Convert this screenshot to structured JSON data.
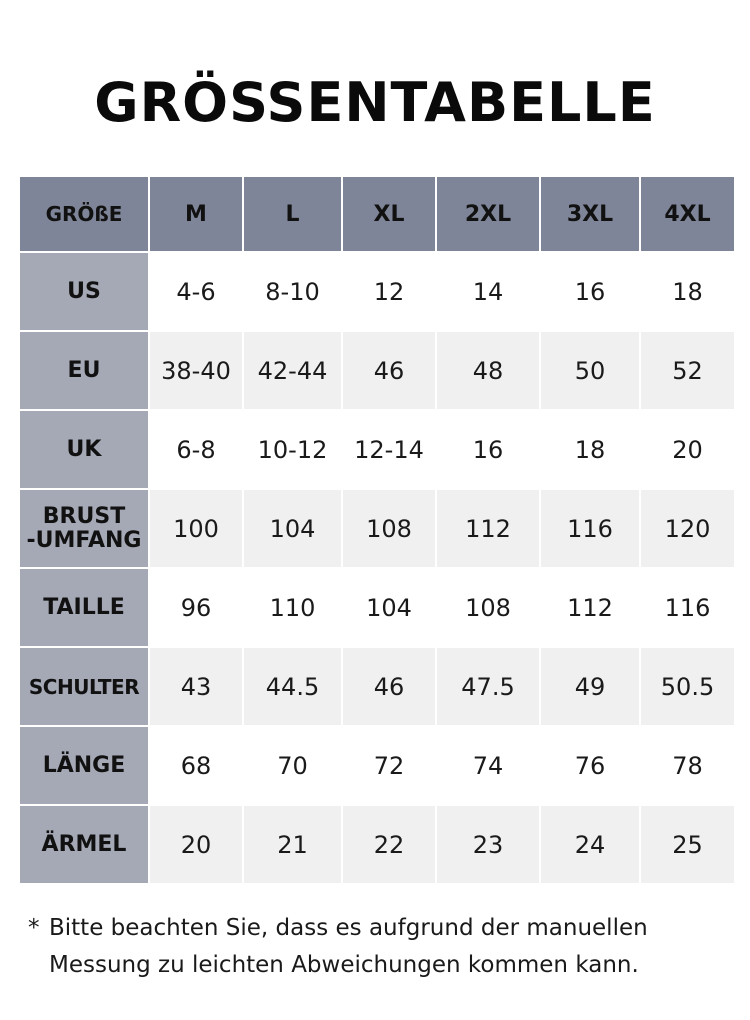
{
  "title": "GRÖSSENTABELLE",
  "table": {
    "header": [
      "GRÖßE",
      "M",
      "L",
      "XL",
      "2XL",
      "3XL",
      "4XL"
    ],
    "rows": [
      {
        "label": "US",
        "values": [
          "4-6",
          "8-10",
          "12",
          "14",
          "16",
          "18"
        ]
      },
      {
        "label": "EU",
        "values": [
          "38-40",
          "42-44",
          "46",
          "48",
          "50",
          "52"
        ]
      },
      {
        "label": "UK",
        "values": [
          "6-8",
          "10-12",
          "12-14",
          "16",
          "18",
          "20"
        ]
      },
      {
        "label_line1": "BRUST",
        "label_line2": "-UMFANG",
        "values": [
          "100",
          "104",
          "108",
          "112",
          "116",
          "120"
        ]
      },
      {
        "label": "TAILLE",
        "values": [
          "96",
          "110",
          "104",
          "108",
          "112",
          "116"
        ]
      },
      {
        "label": "SCHULTER",
        "values": [
          "43",
          "44.5",
          "46",
          "47.5",
          "49",
          "50.5"
        ]
      },
      {
        "label": "LÄNGE",
        "values": [
          "68",
          "70",
          "72",
          "74",
          "76",
          "78"
        ]
      },
      {
        "label": "ÄRMEL",
        "values": [
          "20",
          "21",
          "22",
          "23",
          "24",
          "25"
        ]
      }
    ]
  },
  "note": {
    "marker": "*",
    "line1": "Bitte beachten Sie, dass es aufgrund der manuellen",
    "line2": "Messung zu leichten Abweichungen kommen kann."
  }
}
